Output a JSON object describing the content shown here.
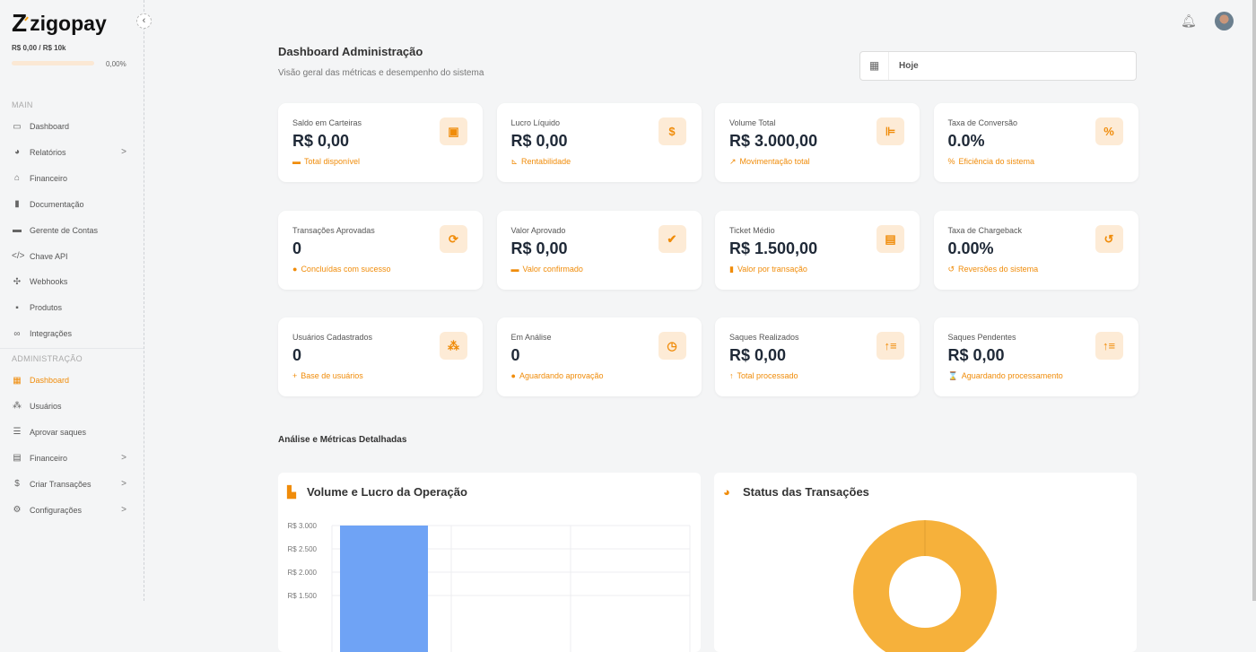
{
  "brand": {
    "name": "zigopay",
    "mark": "Z"
  },
  "sidebar": {
    "limit_text": "R$ 0,00 / R$ 10k",
    "limit_progress_pct": 0,
    "limit_pct_label": "0,00%",
    "main_label": "MAIN",
    "main_items": [
      {
        "label": "Dashboard",
        "icon": "monitor-icon",
        "g": "▭"
      },
      {
        "label": "Relatórios",
        "icon": "pie-chart-icon",
        "g": "◕",
        "chev": ">"
      },
      {
        "label": "Financeiro",
        "icon": "bank-icon",
        "g": "⌂"
      },
      {
        "label": "Documentação",
        "icon": "book-icon",
        "g": "▮"
      },
      {
        "label": "Gerente de Contas",
        "icon": "briefcase-icon",
        "g": "▬"
      },
      {
        "label": "Chave API",
        "icon": "code-icon",
        "g": "</>"
      },
      {
        "label": "Webhooks",
        "icon": "webhook-icon",
        "g": "✣"
      },
      {
        "label": "Produtos",
        "icon": "box-icon",
        "g": "▪"
      },
      {
        "label": "Integrações",
        "icon": "link-icon",
        "g": "∞"
      }
    ],
    "admin_label": "ADMINISTRAÇÃO",
    "admin_items": [
      {
        "label": "Dashboard",
        "icon": "dashboard-icon",
        "g": "▦",
        "active": true
      },
      {
        "label": "Usuários",
        "icon": "users-icon",
        "g": "⁂"
      },
      {
        "label": "Aprovar saques",
        "icon": "checklist-icon",
        "g": "☰"
      },
      {
        "label": "Financeiro",
        "icon": "calculator-icon",
        "g": "▤",
        "chev": ">"
      },
      {
        "label": "Criar Transações",
        "icon": "exchange-icon",
        "g": "$",
        "chev": ">"
      },
      {
        "label": "Configurações",
        "icon": "gear-icon",
        "g": "⚙",
        "chev": ">"
      }
    ]
  },
  "header": {
    "title": "Dashboard Administração",
    "subtitle": "Visão geral das métricas e desempenho do sistema",
    "date_filter": "Hoje"
  },
  "accent": "#f08c0a",
  "cards": [
    {
      "title": "Saldo em Carteiras",
      "value": "R$ 0,00",
      "footer": "Total disponível",
      "icon": "wallet-icon",
      "g": "▣",
      "fg": "▬"
    },
    {
      "title": "Lucro Líquido",
      "value": "R$ 0,00",
      "footer": "Rentabilidade",
      "icon": "dollar-icon",
      "g": "$",
      "fg": "⊾"
    },
    {
      "title": "Volume Total",
      "value": "R$ 3.000,00",
      "footer": "Movimentação total",
      "icon": "bar-chart-icon",
      "g": "⊫",
      "fg": "↗"
    },
    {
      "title": "Taxa de Conversão",
      "value": "0.0%",
      "footer": "Eficiência do sistema",
      "icon": "percent-icon",
      "g": "%",
      "fg": "%"
    },
    {
      "title": "Transações Aprovadas",
      "value": "0",
      "footer": "Concluídas com sucesso",
      "icon": "refresh-icon",
      "g": "⟳",
      "fg": "●"
    },
    {
      "title": "Valor Aprovado",
      "value": "R$ 0,00",
      "footer": "Valor confirmado",
      "icon": "check-circle-icon",
      "g": "✔",
      "fg": "▬"
    },
    {
      "title": "Ticket Médio",
      "value": "R$ 1.500,00",
      "footer": "Valor por transação",
      "icon": "receipt-icon",
      "g": "▤",
      "fg": "▮"
    },
    {
      "title": "Taxa de Chargeback",
      "value": "0.00%",
      "footer": "Reversões do sistema",
      "icon": "undo-icon",
      "g": "↺",
      "fg": "↺"
    },
    {
      "title": "Usuários Cadastrados",
      "value": "0",
      "footer": "Base de usuários",
      "icon": "users-icon",
      "g": "⁂",
      "fg": "+"
    },
    {
      "title": "Em Análise",
      "value": "0",
      "footer": "Aguardando aprovação",
      "icon": "clock-icon",
      "g": "◷",
      "fg": "●"
    },
    {
      "title": "Saques Realizados",
      "value": "R$ 0,00",
      "footer": "Total processado",
      "icon": "sort-up-icon",
      "g": "↑≡",
      "fg": "↑"
    },
    {
      "title": "Saques Pendentes",
      "value": "R$ 0,00",
      "footer": "Aguardando processamento",
      "icon": "sort-up-icon",
      "g": "↑≡",
      "fg": "⌛"
    }
  ],
  "section_title": "Análise e Métricas Detalhadas",
  "chart_data": [
    {
      "type": "bar",
      "title": "Volume e Lucro da Operação",
      "categories": [
        "",
        "",
        ""
      ],
      "values": [
        3000,
        0,
        0
      ],
      "color": "#6fa3f5",
      "y_ticks": [
        "R$ 3.000",
        "R$ 2.500",
        "R$ 2.000",
        "R$ 1.500"
      ],
      "ylim": [
        0,
        3000
      ],
      "grid": true
    },
    {
      "type": "pie",
      "title": "Status das Transações",
      "values": [
        1
      ],
      "colors": [
        "#f6b13b"
      ],
      "donut": true
    }
  ]
}
